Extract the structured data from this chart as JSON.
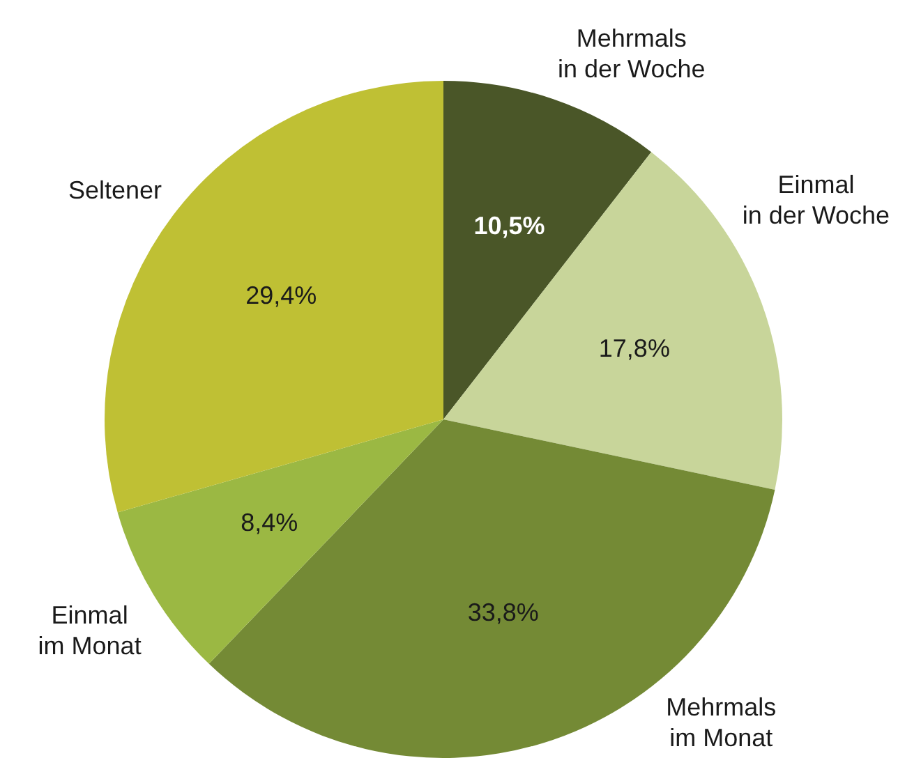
{
  "chart_data": {
    "type": "pie",
    "categories": [
      "Mehrmals in der Woche",
      "Einmal in der Woche",
      "Mehrmals im Monat",
      "Einmal im Monat",
      "Seltener"
    ],
    "values": [
      10.5,
      17.8,
      33.8,
      8.4,
      29.4
    ],
    "colors": [
      "#4a5628",
      "#c8d59a",
      "#748a35",
      "#9bb843",
      "#bfc034"
    ],
    "value_labels": [
      "10,5%",
      "17,8%",
      "33,8%",
      "8,4%",
      "29,4%"
    ]
  }
}
